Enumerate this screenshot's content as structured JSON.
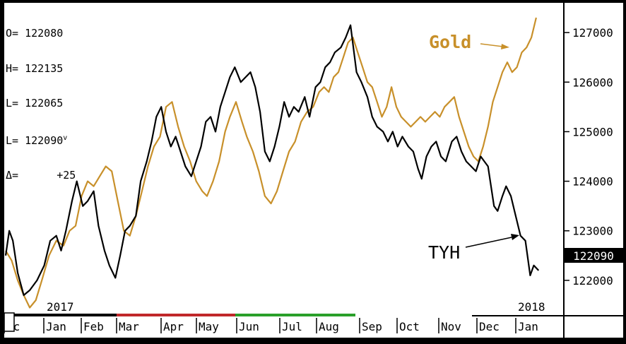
{
  "ohlc": {
    "open": "O= 122080",
    "high": "H= 122135",
    "low": "L= 122065",
    "last": "L= 122090",
    "last_marker": "v",
    "change": "Δ=      +25"
  },
  "annotations": {
    "gold": "Gold",
    "tyh": "TYH"
  },
  "last_price_box": "122090",
  "colors": {
    "gold": "#c8902a",
    "tyh": "#000000",
    "background": "#ffffff",
    "frame": "#000000"
  },
  "chart_data": {
    "type": "line",
    "x_axis": {
      "year_labels": [
        "2017",
        "2018"
      ],
      "month_labels": [
        "ec",
        "Jan",
        "Feb",
        "Mar",
        "Apr",
        "May",
        "Jun",
        "Jul",
        "Aug",
        "Sep",
        "Oct",
        "Nov",
        "Dec",
        "Jan"
      ],
      "quarter_bar_colors": [
        "#000000",
        "#c0282a",
        "#2aa02a",
        "#ffffff"
      ]
    },
    "y_axis": {
      "ticks": [
        122000,
        123000,
        124000,
        125000,
        126000,
        127000
      ],
      "range": [
        121300,
        127600
      ],
      "position": "right"
    },
    "grid": false,
    "series": [
      {
        "name": "TYH",
        "color": "#000000",
        "points": [
          [
            0,
            122500
          ],
          [
            0.3,
            123000
          ],
          [
            0.6,
            122800
          ],
          [
            1,
            122150
          ],
          [
            1.5,
            121700
          ],
          [
            2,
            121800
          ],
          [
            2.6,
            122000
          ],
          [
            3.2,
            122300
          ],
          [
            3.7,
            122800
          ],
          [
            4.2,
            122900
          ],
          [
            4.6,
            122600
          ],
          [
            5,
            123000
          ],
          [
            5.5,
            123600
          ],
          [
            5.9,
            124000
          ],
          [
            6.4,
            123500
          ],
          [
            6.8,
            123600
          ],
          [
            7.3,
            123800
          ],
          [
            7.7,
            123100
          ],
          [
            8.2,
            122600
          ],
          [
            8.6,
            122300
          ],
          [
            9.1,
            122050
          ],
          [
            9.5,
            122500
          ],
          [
            9.9,
            123000
          ],
          [
            10.3,
            123100
          ],
          [
            10.8,
            123300
          ],
          [
            11.2,
            124000
          ],
          [
            11.7,
            124400
          ],
          [
            12.1,
            124800
          ],
          [
            12.5,
            125300
          ],
          [
            12.9,
            125500
          ],
          [
            13.3,
            125000
          ],
          [
            13.7,
            124700
          ],
          [
            14.1,
            124900
          ],
          [
            14.5,
            124600
          ],
          [
            14.9,
            124300
          ],
          [
            15.4,
            124100
          ],
          [
            15.8,
            124400
          ],
          [
            16.2,
            124700
          ],
          [
            16.6,
            125200
          ],
          [
            17,
            125300
          ],
          [
            17.4,
            125000
          ],
          [
            17.8,
            125500
          ],
          [
            18.2,
            125800
          ],
          [
            18.6,
            126100
          ],
          [
            19,
            126300
          ],
          [
            19.5,
            126000
          ],
          [
            19.9,
            126100
          ],
          [
            20.3,
            126200
          ],
          [
            20.7,
            125900
          ],
          [
            21.1,
            125400
          ],
          [
            21.5,
            124600
          ],
          [
            21.9,
            124400
          ],
          [
            22.3,
            124700
          ],
          [
            22.7,
            125100
          ],
          [
            23.1,
            125600
          ],
          [
            23.5,
            125300
          ],
          [
            23.9,
            125500
          ],
          [
            24.3,
            125400
          ],
          [
            24.8,
            125700
          ],
          [
            25.2,
            125300
          ],
          [
            25.7,
            125900
          ],
          [
            26.1,
            126000
          ],
          [
            26.5,
            126300
          ],
          [
            26.9,
            126400
          ],
          [
            27.3,
            126600
          ],
          [
            27.8,
            126700
          ],
          [
            28.2,
            126900
          ],
          [
            28.6,
            127150
          ],
          [
            29.1,
            126200
          ],
          [
            29.5,
            126000
          ],
          [
            30,
            125700
          ],
          [
            30.4,
            125300
          ],
          [
            30.8,
            125100
          ],
          [
            31.3,
            125000
          ],
          [
            31.7,
            124800
          ],
          [
            32.1,
            125000
          ],
          [
            32.5,
            124700
          ],
          [
            32.9,
            124900
          ],
          [
            33.4,
            124700
          ],
          [
            33.8,
            124600
          ],
          [
            34.2,
            124250
          ],
          [
            34.5,
            124050
          ],
          [
            34.9,
            124500
          ],
          [
            35.3,
            124700
          ],
          [
            35.7,
            124800
          ],
          [
            36.1,
            124500
          ],
          [
            36.5,
            124400
          ],
          [
            37,
            124800
          ],
          [
            37.4,
            124900
          ],
          [
            37.8,
            124600
          ],
          [
            38.2,
            124400
          ],
          [
            38.6,
            124300
          ],
          [
            39,
            124200
          ],
          [
            39.4,
            124500
          ],
          [
            39.7,
            124400
          ],
          [
            40,
            124300
          ],
          [
            40.5,
            123500
          ],
          [
            40.8,
            123400
          ],
          [
            41.2,
            123700
          ],
          [
            41.5,
            123900
          ],
          [
            41.9,
            123700
          ],
          [
            42.3,
            123300
          ],
          [
            42.7,
            122900
          ],
          [
            43.1,
            122800
          ],
          [
            43.5,
            122100
          ],
          [
            43.8,
            122300
          ],
          [
            44.2,
            122200
          ]
        ]
      },
      {
        "name": "Gold",
        "color": "#c8902a",
        "points": [
          [
            0,
            122600
          ],
          [
            0.5,
            122400
          ],
          [
            1,
            122000
          ],
          [
            1.5,
            121700
          ],
          [
            2,
            121450
          ],
          [
            2.5,
            121600
          ],
          [
            3,
            122000
          ],
          [
            3.6,
            122500
          ],
          [
            4.2,
            122800
          ],
          [
            4.8,
            122700
          ],
          [
            5.3,
            123000
          ],
          [
            5.8,
            123100
          ],
          [
            6.3,
            123700
          ],
          [
            6.8,
            124000
          ],
          [
            7.3,
            123900
          ],
          [
            7.8,
            124100
          ],
          [
            8.3,
            124300
          ],
          [
            8.8,
            124200
          ],
          [
            9.3,
            123600
          ],
          [
            9.8,
            123000
          ],
          [
            10.3,
            122900
          ],
          [
            10.8,
            123300
          ],
          [
            11.3,
            123800
          ],
          [
            11.8,
            124300
          ],
          [
            12.3,
            124700
          ],
          [
            12.8,
            124900
          ],
          [
            13.3,
            125500
          ],
          [
            13.8,
            125600
          ],
          [
            14.3,
            125100
          ],
          [
            14.8,
            124700
          ],
          [
            15.3,
            124400
          ],
          [
            15.8,
            124000
          ],
          [
            16.3,
            123800
          ],
          [
            16.7,
            123700
          ],
          [
            17.2,
            124000
          ],
          [
            17.7,
            124400
          ],
          [
            18.2,
            125000
          ],
          [
            18.6,
            125300
          ],
          [
            19.1,
            125600
          ],
          [
            19.6,
            125200
          ],
          [
            20,
            124900
          ],
          [
            20.5,
            124600
          ],
          [
            21,
            124200
          ],
          [
            21.5,
            123700
          ],
          [
            22,
            123550
          ],
          [
            22.5,
            123800
          ],
          [
            23,
            124200
          ],
          [
            23.5,
            124600
          ],
          [
            24,
            124800
          ],
          [
            24.5,
            125200
          ],
          [
            25,
            125400
          ],
          [
            25.5,
            125500
          ],
          [
            26,
            125800
          ],
          [
            26.4,
            125900
          ],
          [
            26.8,
            125800
          ],
          [
            27.2,
            126100
          ],
          [
            27.6,
            126200
          ],
          [
            28,
            126500
          ],
          [
            28.4,
            126800
          ],
          [
            28.8,
            126900
          ],
          [
            29.2,
            126600
          ],
          [
            29.6,
            126300
          ],
          [
            30,
            126000
          ],
          [
            30.4,
            125900
          ],
          [
            30.8,
            125600
          ],
          [
            31.2,
            125300
          ],
          [
            31.6,
            125500
          ],
          [
            32,
            125900
          ],
          [
            32.4,
            125500
          ],
          [
            32.8,
            125300
          ],
          [
            33.2,
            125200
          ],
          [
            33.6,
            125100
          ],
          [
            34,
            125200
          ],
          [
            34.4,
            125300
          ],
          [
            34.8,
            125200
          ],
          [
            35.2,
            125300
          ],
          [
            35.6,
            125400
          ],
          [
            36,
            125300
          ],
          [
            36.4,
            125500
          ],
          [
            36.8,
            125600
          ],
          [
            37.2,
            125700
          ],
          [
            37.6,
            125300
          ],
          [
            38,
            125000
          ],
          [
            38.4,
            124700
          ],
          [
            38.8,
            124500
          ],
          [
            39.2,
            124400
          ],
          [
            39.6,
            124700
          ],
          [
            40,
            125100
          ],
          [
            40.4,
            125600
          ],
          [
            40.8,
            125900
          ],
          [
            41.2,
            126200
          ],
          [
            41.6,
            126400
          ],
          [
            42,
            126200
          ],
          [
            42.4,
            126300
          ],
          [
            42.8,
            126600
          ],
          [
            43.2,
            126700
          ],
          [
            43.6,
            126900
          ],
          [
            44,
            127300
          ]
        ]
      }
    ],
    "x_range": [
      0,
      45
    ]
  }
}
